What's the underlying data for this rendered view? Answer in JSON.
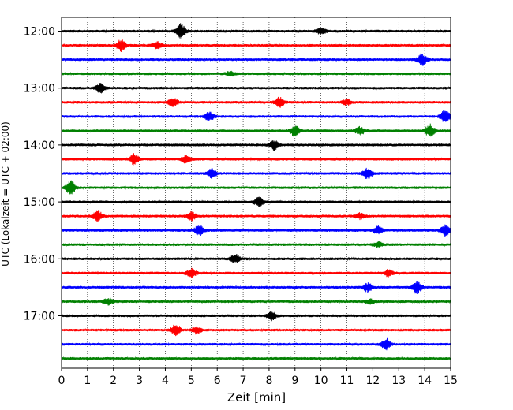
{
  "chart_data": {
    "type": "line",
    "title": "",
    "xlabel": "Zeit  [min]",
    "ylabel": "UTC (Lokalzeit = UTC + 02:00)",
    "xlim": [
      0,
      15
    ],
    "x_ticks": [
      "0",
      "1",
      "2",
      "3",
      "4",
      "5",
      "6",
      "7",
      "8",
      "9",
      "10",
      "11",
      "12",
      "13",
      "14",
      "15"
    ],
    "y_tick_labels": [
      "12:00",
      "13:00",
      "14:00",
      "15:00",
      "16:00",
      "17:00"
    ],
    "grid": "vertical dotted",
    "series_colors": [
      "#000000",
      "#ff0000",
      "#0000ff",
      "#008000"
    ],
    "traces": [
      {
        "start": "12:00",
        "color": "#000000",
        "bursts": [
          {
            "t": 4.6,
            "amp": 1.0
          },
          {
            "t": 10.0,
            "amp": 0.45
          }
        ]
      },
      {
        "start": "12:15",
        "color": "#ff0000",
        "bursts": [
          {
            "t": 2.3,
            "amp": 0.8
          },
          {
            "t": 3.7,
            "amp": 0.45
          }
        ]
      },
      {
        "start": "12:30",
        "color": "#0000ff",
        "bursts": [
          {
            "t": 13.9,
            "amp": 0.85
          }
        ]
      },
      {
        "start": "12:45",
        "color": "#008000",
        "bursts": [
          {
            "t": 6.5,
            "amp": 0.3
          }
        ]
      },
      {
        "start": "13:00",
        "color": "#000000",
        "bursts": [
          {
            "t": 1.5,
            "amp": 0.7
          }
        ]
      },
      {
        "start": "13:15",
        "color": "#ff0000",
        "bursts": [
          {
            "t": 4.3,
            "amp": 0.6
          },
          {
            "t": 8.4,
            "amp": 0.7
          },
          {
            "t": 11.0,
            "amp": 0.4
          }
        ]
      },
      {
        "start": "13:30",
        "color": "#0000ff",
        "bursts": [
          {
            "t": 5.7,
            "amp": 0.6
          },
          {
            "t": 14.8,
            "amp": 0.95
          }
        ]
      },
      {
        "start": "13:45",
        "color": "#008000",
        "bursts": [
          {
            "t": 9.0,
            "amp": 0.8
          },
          {
            "t": 11.5,
            "amp": 0.6
          },
          {
            "t": 14.2,
            "amp": 0.9
          }
        ]
      },
      {
        "start": "14:00",
        "color": "#000000",
        "bursts": [
          {
            "t": 8.2,
            "amp": 0.65
          }
        ]
      },
      {
        "start": "14:15",
        "color": "#ff0000",
        "bursts": [
          {
            "t": 2.8,
            "amp": 0.75
          },
          {
            "t": 4.8,
            "amp": 0.5
          }
        ]
      },
      {
        "start": "14:30",
        "color": "#0000ff",
        "bursts": [
          {
            "t": 5.8,
            "amp": 0.65
          },
          {
            "t": 11.8,
            "amp": 0.8
          }
        ]
      },
      {
        "start": "14:45",
        "color": "#008000",
        "bursts": [
          {
            "t": 0.35,
            "amp": 0.95
          }
        ]
      },
      {
        "start": "15:00",
        "color": "#000000",
        "bursts": [
          {
            "t": 7.6,
            "amp": 0.65
          }
        ]
      },
      {
        "start": "15:15",
        "color": "#ff0000",
        "bursts": [
          {
            "t": 1.4,
            "amp": 0.75
          },
          {
            "t": 5.0,
            "amp": 0.6
          },
          {
            "t": 11.5,
            "amp": 0.4
          }
        ]
      },
      {
        "start": "15:30",
        "color": "#0000ff",
        "bursts": [
          {
            "t": 5.3,
            "amp": 0.7
          },
          {
            "t": 12.2,
            "amp": 0.55
          },
          {
            "t": 14.8,
            "amp": 0.8
          }
        ]
      },
      {
        "start": "15:45",
        "color": "#008000",
        "bursts": [
          {
            "t": 12.2,
            "amp": 0.35
          }
        ]
      },
      {
        "start": "16:00",
        "color": "#000000",
        "bursts": [
          {
            "t": 6.7,
            "amp": 0.65
          }
        ]
      },
      {
        "start": "16:15",
        "color": "#ff0000",
        "bursts": [
          {
            "t": 5.0,
            "amp": 0.65
          },
          {
            "t": 12.6,
            "amp": 0.45
          }
        ]
      },
      {
        "start": "16:30",
        "color": "#0000ff",
        "bursts": [
          {
            "t": 11.8,
            "amp": 0.6
          },
          {
            "t": 13.7,
            "amp": 0.85
          }
        ]
      },
      {
        "start": "16:45",
        "color": "#008000",
        "bursts": [
          {
            "t": 1.8,
            "amp": 0.45
          },
          {
            "t": 11.9,
            "amp": 0.3
          }
        ]
      },
      {
        "start": "17:00",
        "color": "#000000",
        "bursts": [
          {
            "t": 8.1,
            "amp": 0.6
          }
        ]
      },
      {
        "start": "17:15",
        "color": "#ff0000",
        "bursts": [
          {
            "t": 4.4,
            "amp": 0.75
          },
          {
            "t": 5.2,
            "amp": 0.5
          }
        ]
      },
      {
        "start": "17:30",
        "color": "#0000ff",
        "bursts": [
          {
            "t": 12.5,
            "amp": 0.8
          }
        ]
      },
      {
        "start": "17:45",
        "color": "#008000",
        "bursts": []
      }
    ]
  }
}
